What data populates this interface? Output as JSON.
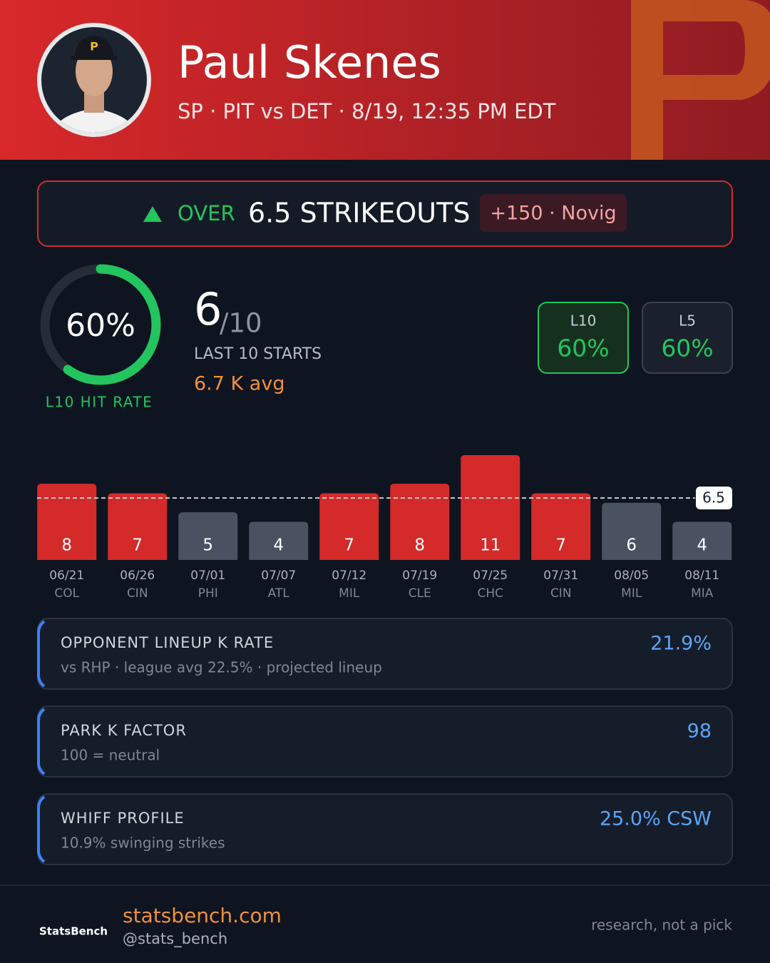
{
  "header": {
    "name": "Paul Skenes",
    "subtitle": "SP · PIT vs DET · 8/19, 12:35 PM EDT"
  },
  "pick": {
    "direction": "OVER",
    "line": "6.5 STRIKEOUTS",
    "odds": "+150 · Novig"
  },
  "hit_rate": {
    "value": 60,
    "value_label": "60%",
    "caption": "L10 HIT RATE",
    "color": "#22c55e"
  },
  "record": {
    "hits": 6,
    "total": "/10",
    "period": "LAST 10 STARTS",
    "avg": "6.7 K avg"
  },
  "splits": [
    {
      "label": "L10",
      "value": "60%"
    },
    {
      "label": "L5",
      "value": "60%"
    }
  ],
  "chart": {
    "type": "bar",
    "dates": [
      "06/21",
      "06/26",
      "07/01",
      "07/07",
      "07/12",
      "07/19",
      "07/25",
      "07/31",
      "08/05",
      "08/11"
    ],
    "opponents": [
      "COL",
      "CIN",
      "PHI",
      "ATL",
      "MIL",
      "CLE",
      "CHC",
      "CIN",
      "MIL",
      "MIA"
    ],
    "values": [
      8,
      7,
      5,
      4,
      7,
      8,
      11,
      7,
      6,
      4
    ],
    "line": 6.5,
    "over_color": "#d42a2a",
    "under_color": "#4a5262"
  },
  "factors": [
    {
      "title": "OPPONENT LINEUP K RATE",
      "detail": "vs RHP · league avg 22.5% · projected lineup",
      "value": "21.9%"
    },
    {
      "title": "PARK K FACTOR",
      "detail": "100 = neutral",
      "value": "98"
    },
    {
      "title": "WHIFF PROFILE",
      "detail": "10.9% swinging strikes",
      "value": "25.0% CSW"
    }
  ],
  "footer": {
    "logo": "StatsBench",
    "site": "statsbench.com",
    "handle": "@stats_bench",
    "note": "research, not a pick"
  }
}
